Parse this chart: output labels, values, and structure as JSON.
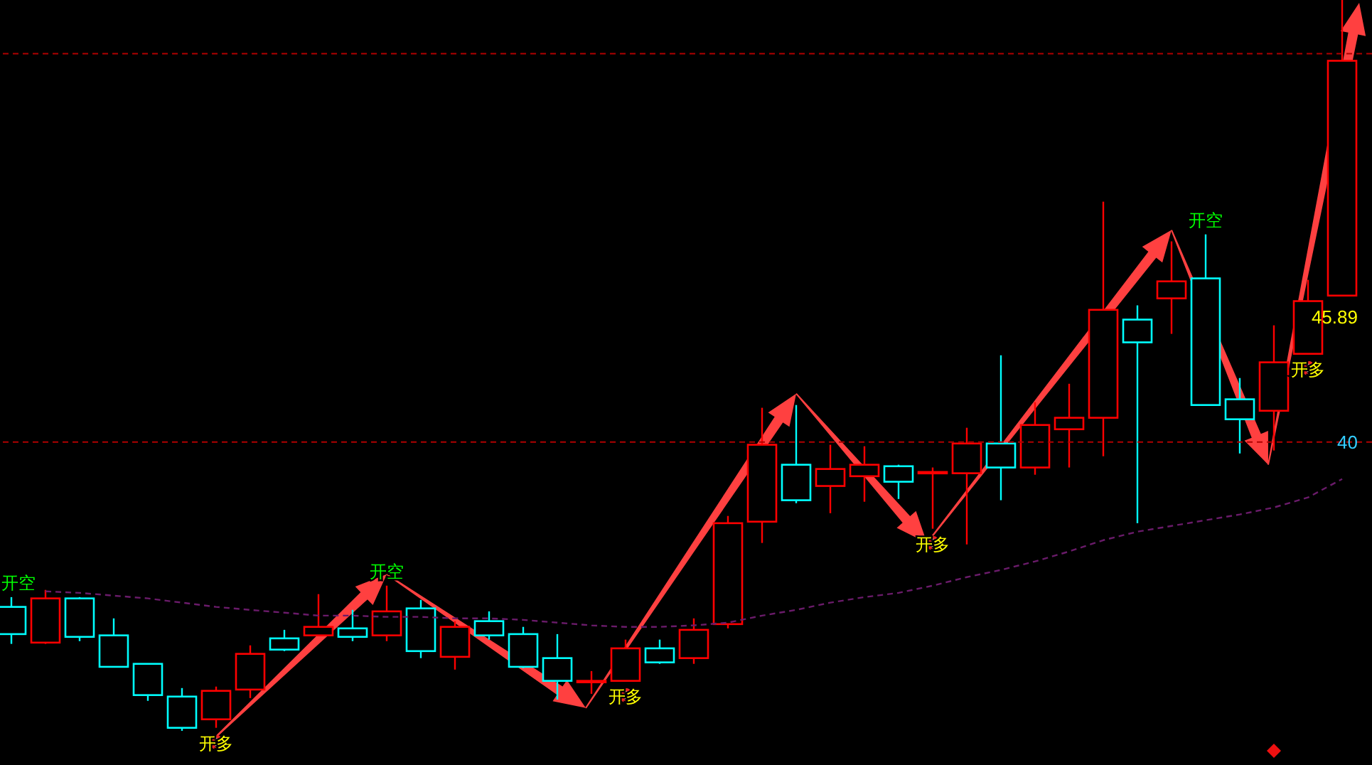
{
  "chart_data": {
    "type": "candlestick",
    "categories": [
      null,
      null,
      null,
      null,
      null,
      null,
      null,
      null,
      null,
      null,
      null,
      null,
      null,
      null,
      null,
      null,
      null,
      null,
      null,
      null,
      null,
      null,
      null,
      null,
      null,
      null,
      null,
      null,
      null,
      null,
      null,
      null,
      null,
      null,
      null,
      null,
      null,
      null,
      null,
      null
    ],
    "ohlc": [
      [
        32.24,
        32.7,
        30.5,
        30.96
      ],
      [
        30.56,
        33.04,
        30.5,
        32.64
      ],
      [
        32.64,
        32.7,
        30.63,
        30.83
      ],
      [
        30.9,
        31.7,
        29.42,
        29.42
      ],
      [
        29.56,
        29.56,
        27.82,
        28.09
      ],
      [
        28.02,
        28.42,
        26.41,
        26.55
      ],
      [
        26.95,
        28.49,
        26.55,
        28.29
      ],
      [
        28.35,
        30.43,
        27.95,
        30.03
      ],
      [
        30.76,
        31.16,
        30.16,
        30.23
      ],
      [
        30.9,
        32.84,
        30.9,
        31.3
      ],
      [
        31.23,
        32.1,
        30.63,
        30.83
      ],
      [
        30.9,
        33.24,
        30.63,
        32.03
      ],
      [
        32.17,
        32.57,
        29.83,
        30.16
      ],
      [
        29.89,
        31.57,
        29.29,
        31.3
      ],
      [
        31.57,
        32.03,
        30.7,
        30.9
      ],
      [
        30.96,
        31.3,
        29.36,
        29.42
      ],
      [
        29.83,
        30.96,
        27.88,
        28.76
      ],
      [
        28.76,
        29.22,
        28.15,
        28.76
      ],
      [
        28.76,
        30.7,
        28.76,
        30.29
      ],
      [
        30.29,
        30.7,
        29.56,
        29.63
      ],
      [
        29.83,
        31.7,
        29.56,
        31.16
      ],
      [
        31.43,
        36.52,
        31.23,
        36.18
      ],
      [
        36.25,
        41.61,
        35.25,
        39.87
      ],
      [
        38.93,
        41.74,
        37.12,
        37.26
      ],
      [
        37.93,
        39.87,
        36.65,
        38.73
      ],
      [
        38.39,
        39.8,
        37.19,
        38.93
      ],
      [
        38.86,
        38.93,
        37.32,
        38.13
      ],
      [
        38.59,
        38.8,
        35.92,
        38.59
      ],
      [
        38.53,
        40.67,
        35.18,
        39.93
      ],
      [
        39.93,
        44.08,
        37.26,
        38.8
      ],
      [
        38.8,
        41.87,
        38.46,
        40.8
      ],
      [
        40.6,
        42.74,
        38.8,
        41.14
      ],
      [
        41.14,
        51.31,
        39.33,
        46.22
      ],
      [
        45.76,
        46.43,
        36.18,
        44.69
      ],
      [
        46.76,
        49.44,
        45.09,
        47.56
      ],
      [
        47.7,
        49.77,
        41.74,
        41.74
      ],
      [
        42.01,
        43.01,
        39.46,
        41.07
      ],
      [
        41.47,
        45.49,
        39.6,
        43.75
      ],
      [
        44.15,
        47.63,
        44.15,
        46.63
      ],
      [
        46.89,
        60.8,
        46.89,
        57.94
      ]
    ],
    "colors": [
      "#00ffff",
      "#ff0000",
      "#00ffff",
      "#00ffff",
      "#00ffff",
      "#00ffff",
      "#ff0000",
      "#ff0000",
      "#00ffff",
      "#ff0000",
      "#00ffff",
      "#ff0000",
      "#00ffff",
      "#ff0000",
      "#00ffff",
      "#00ffff",
      "#00ffff",
      "#ff0000",
      "#ff0000",
      "#00ffff",
      "#ff0000",
      "#ff0000",
      "#ff0000",
      "#00ffff",
      "#ff0000",
      "#ff0000",
      "#00ffff",
      "#ff0000",
      "#ff0000",
      "#00ffff",
      "#ff0000",
      "#ff0000",
      "#ff0000",
      "#00ffff",
      "#ff0000",
      "#00ffff",
      "#00ffff",
      "#ff0000",
      "#ff0000",
      "#ff0000"
    ],
    "series": [
      {
        "type": "line",
        "color": "#6a1b6a",
        "line_style": "dashed",
        "values": [
          null,
          32.97,
          32.9,
          32.77,
          32.64,
          32.44,
          32.24,
          32.1,
          31.97,
          31.83,
          31.83,
          31.77,
          31.77,
          31.7,
          31.7,
          31.63,
          31.5,
          31.37,
          31.3,
          31.3,
          31.37,
          31.5,
          31.83,
          32.1,
          32.44,
          32.7,
          32.9,
          33.24,
          33.64,
          33.98,
          34.38,
          34.85,
          35.38,
          35.78,
          36.05,
          36.32,
          36.59,
          36.92,
          37.39,
          38.26
        ]
      }
    ],
    "ylim": [
      24.8,
      60.8
    ],
    "yticks": [
      40,
      45.89
    ],
    "ref_lines": [
      {
        "axis": "y",
        "value": 40,
        "color": "#b00000",
        "line_style": "dashed"
      },
      {
        "axis": "y",
        "value": 58.27,
        "color": "#b00000",
        "line_style": "dashed"
      }
    ],
    "annotations": [
      "开空",
      {
        "text": "开多",
        "y": 26.55
      },
      {
        "text": "开空",
        "y": 33.24
      },
      {
        "text": "开多",
        "y": 28.76
      },
      {
        "text": "开多",
        "y": 35.92
      },
      {
        "text": "开空",
        "y": 49.77
      },
      {
        "text": "开多",
        "y": 44.15
      }
    ]
  }
}
